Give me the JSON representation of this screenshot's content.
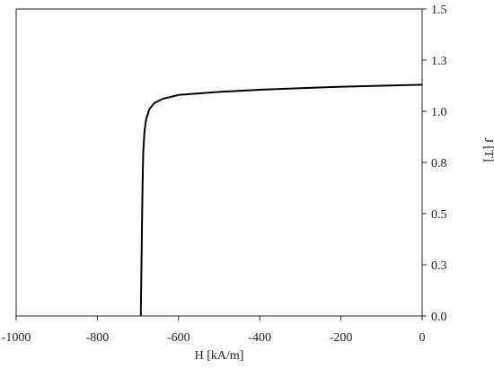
{
  "chart_data": {
    "type": "line",
    "xlabel": "H [kA/m]",
    "ylabel": "J [T]",
    "x": [
      -693,
      -691,
      -689,
      -687,
      -684,
      -680,
      -672,
      -660,
      -640,
      -600,
      -500,
      -400,
      -300,
      -200,
      -100,
      0
    ],
    "values": [
      0,
      0.3,
      0.6,
      0.8,
      0.9,
      0.96,
      1.01,
      1.04,
      1.06,
      1.08,
      1.095,
      1.105,
      1.113,
      1.12,
      1.125,
      1.13
    ],
    "color": "#000000",
    "xlim": [
      -1000,
      0
    ],
    "xticks": [
      -1000,
      -800,
      -600,
      -400,
      -200,
      0
    ],
    "ylim": [
      0,
      1.5
    ],
    "yticks": [
      {
        "value": 0,
        "label": "0.0"
      },
      {
        "value": 0.25,
        "label": "0.3"
      },
      {
        "value": 0.5,
        "label": "0.5"
      },
      {
        "value": 0.75,
        "label": "0.8"
      },
      {
        "value": 1,
        "label": "1.0"
      },
      {
        "value": 1.25,
        "label": "1.3"
      },
      1.5
    ]
  }
}
